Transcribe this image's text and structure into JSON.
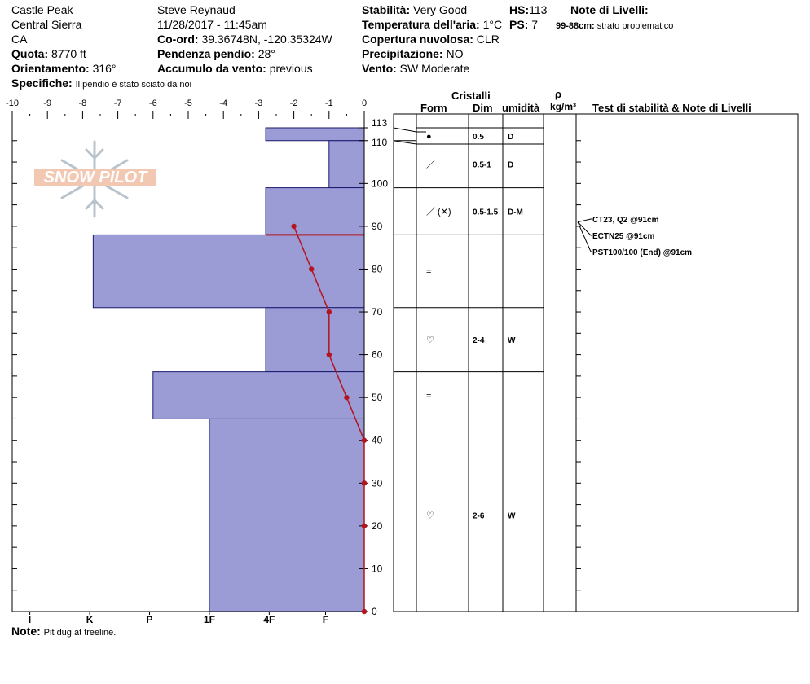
{
  "header": {
    "location": "Castle Peak",
    "range": "Central Sierra",
    "state": "CA",
    "observer": "Steve Reynaud",
    "datetime": "11/28/2017 - 11:45am",
    "coord_label": "Co-ord:",
    "coord_value": "39.36748N, -120.35324W",
    "quota_label": "Quota:",
    "quota_value": "8770 ft",
    "slope_label": "Pendenza pendio:",
    "slope_value": "28°",
    "aspect_label": "Orientamento:",
    "aspect_value": "316°",
    "wind_load_label": "Accumulo da vento:",
    "wind_load_value": "previous",
    "specifics_label": "Specifiche:",
    "specifics_value": "Il pendio è stato sciato da noi",
    "stability_label": "Stabilità:",
    "stability_value": "Very Good",
    "air_temp_label": "Temperatura dell'aria:",
    "air_temp_value": "1°C",
    "cloud_label": "Copertura nuvolosa:",
    "cloud_value": "CLR",
    "precip_label": "Precipitazione:",
    "precip_value": "NO",
    "wind_label": "Vento:",
    "wind_value": "SW Moderate",
    "hs_label": "HS:",
    "hs_value": "113",
    "ps_label": "PS:",
    "ps_value": "7",
    "layer_notes_label": "Note di Livelli:",
    "layer_note_depth": "99-88cm:",
    "layer_note_text": "strato problematico"
  },
  "note": {
    "label": "Note:",
    "text": "Pit dug at treeline."
  },
  "logo": {
    "text": "SNOW PILOT"
  },
  "columns": {
    "crystals": "Cristalli",
    "form": "Form",
    "dim": "Dim",
    "humidity": "umidità",
    "rho": "ρ",
    "density_unit": "kg/m³",
    "tests": "Test di stabilità & Note di Livelli"
  },
  "layers": [
    {
      "top": 113,
      "bottom": 110,
      "hardness": -2.8,
      "form": "●",
      "dim": "0.5",
      "humidity": "D"
    },
    {
      "top": 110,
      "bottom": 99,
      "hardness": -1.0,
      "form": "／",
      "dim": "0.5-1",
      "humidity": "D"
    },
    {
      "top": 99,
      "bottom": 88,
      "hardness": -2.8,
      "form": "／ (✕)",
      "dim": "0.5-1.5",
      "humidity": "D-M"
    },
    {
      "top": 88,
      "bottom": 71,
      "hardness": -7.7,
      "form": "=",
      "dim": "",
      "humidity": ""
    },
    {
      "top": 71,
      "bottom": 56,
      "hardness": -2.8,
      "form": "♡",
      "dim": "2-4",
      "humidity": "W"
    },
    {
      "top": 56,
      "bottom": 45,
      "hardness": -6.0,
      "form": "=",
      "dim": "",
      "humidity": ""
    },
    {
      "top": 45,
      "bottom": 0,
      "hardness": -4.4,
      "form": "♡",
      "dim": "2-6",
      "humidity": "W"
    }
  ],
  "tests": [
    "CT23, Q2 @91cm",
    "ECTN25 @91cm",
    "PST100/100 (End) @91cm"
  ],
  "chart_data": {
    "type": "line",
    "title": "",
    "xlim": [
      -10,
      0
    ],
    "ylim": [
      0,
      113
    ],
    "top_axis_ticks": [
      "-10",
      "-9",
      "-8",
      "-7",
      "-6",
      "-5",
      "-4",
      "-3",
      "-2",
      "-1",
      "0"
    ],
    "depth_ticks": [
      "113",
      "110",
      "100",
      "90",
      "80",
      "70",
      "60",
      "50",
      "40",
      "30",
      "20",
      "10",
      "0"
    ],
    "hardness_ticks": [
      {
        "label": "I",
        "x": -9.5
      },
      {
        "label": "K",
        "x": -7.8
      },
      {
        "label": "P",
        "x": -6.1
      },
      {
        "label": "1F",
        "x": -4.4
      },
      {
        "label": "4F",
        "x": -2.7
      },
      {
        "label": "F",
        "x": -1.1
      }
    ],
    "series": [
      {
        "x": [
          -2.0,
          -1.5,
          -1.0,
          -1.0,
          -0.5,
          0,
          0,
          0,
          0
        ],
        "y": [
          90,
          80,
          70,
          60,
          50,
          40,
          30,
          20,
          0
        ]
      }
    ],
    "weak_layer_depth": 88,
    "colors": {
      "fill": "#9b9bd6",
      "stroke": "#1a1a6e",
      "temp": "#b3141e",
      "weak": "#b3141e"
    }
  }
}
